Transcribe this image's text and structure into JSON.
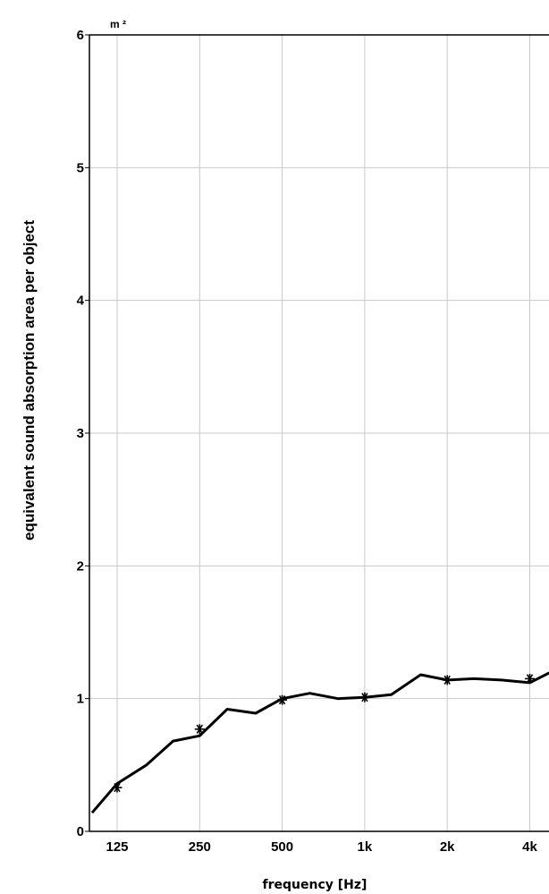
{
  "chart_data": {
    "type": "line",
    "title": "",
    "ylabel": "equivalent sound absorption area per object",
    "xlabel": "frequency [Hz]",
    "y_unit": "m ²",
    "x_scale": "log",
    "ylim": [
      0,
      6
    ],
    "y_ticks": [
      "0",
      "1",
      "2",
      "3",
      "4",
      "5",
      "6"
    ],
    "x_ticks": [
      {
        "label": "125",
        "value": 125
      },
      {
        "label": "250",
        "value": 250
      },
      {
        "label": "500",
        "value": 500
      },
      {
        "label": "1k",
        "value": 1000
      },
      {
        "label": "2k",
        "value": 2000
      },
      {
        "label": "4k",
        "value": 4000
      }
    ],
    "grid": true,
    "legend": "none",
    "colors": {
      "line": "#000000",
      "grid": "#c8c8c8",
      "axis": "#000000"
    },
    "series": [
      {
        "x": [
          100,
          125,
          160,
          200,
          250,
          315,
          400,
          500,
          630,
          800,
          1000,
          1250,
          1600,
          2000,
          2500,
          3150,
          4000,
          5000
        ],
        "values": [
          0.14,
          0.36,
          0.5,
          0.68,
          0.72,
          0.92,
          0.89,
          1.0,
          1.04,
          1.0,
          1.01,
          1.03,
          1.18,
          1.14,
          1.15,
          1.14,
          1.12,
          1.22
        ]
      },
      {
        "marker": "asterisk",
        "x": [
          125,
          250,
          500,
          1000,
          2000,
          4000
        ],
        "values": [
          0.33,
          0.77,
          0.99,
          1.01,
          1.14,
          1.15
        ]
      }
    ]
  }
}
